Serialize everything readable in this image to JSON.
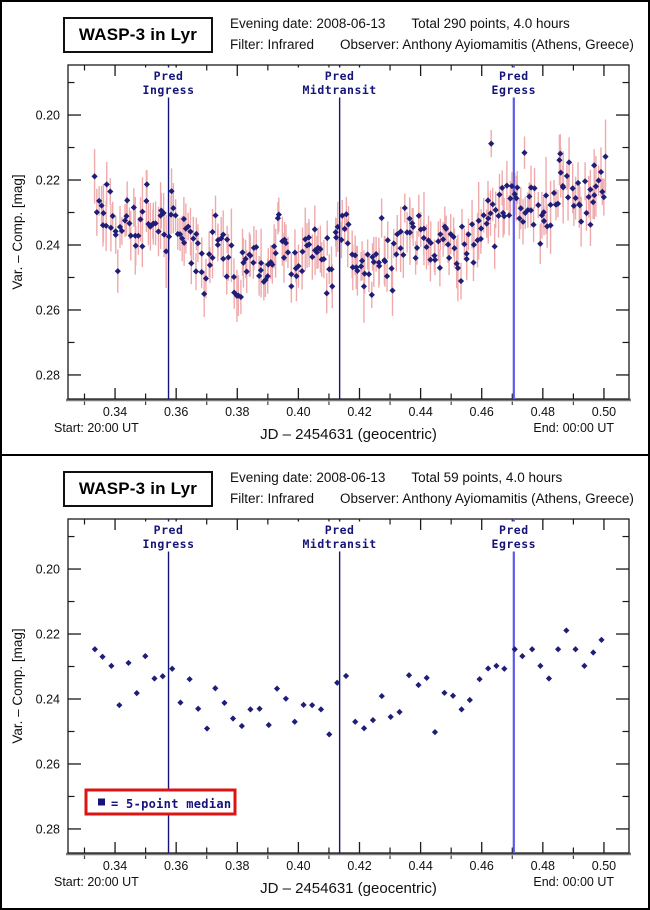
{
  "colors": {
    "marker": "#1e1e78",
    "error_bar": "#efaaac",
    "vline_dark": "#14147a",
    "vline_egress": "#5b5be8",
    "frame": "#1a1a1a",
    "x_axis_base": "#7b7b7b",
    "mono_text": "#14147a",
    "legend_border": "#dc1414",
    "text": "#111111"
  },
  "chart_data": [
    {
      "type": "scatter",
      "header": {
        "title": "WASP-3 in Lyr",
        "line1_left": "Evening date: 2008-06-13",
        "line1_right": "Total 290 points, 4.0 hours",
        "line2_left": "Filter: Infrared",
        "line2_right": "Observer: Anthony Ayiomamitis (Athens, Greece)"
      },
      "xlabel": "JD – 2454631  (geocentric)",
      "ylabel": "Var. – Comp. [mag]",
      "corner_left": "Start: 20:00 UT",
      "corner_right": "End: 00:00 UT",
      "xlim": [
        0.3246,
        0.5082
      ],
      "ylim": [
        0.1846,
        0.2874
      ],
      "y_axis_inverted_brighter_up": true,
      "x_major_ticks": [
        0.34,
        0.36,
        0.38,
        0.4,
        0.42,
        0.44,
        0.46,
        0.48,
        0.5
      ],
      "x_minor_ticks": [
        0.33,
        0.35,
        0.37,
        0.39,
        0.41,
        0.43,
        0.45,
        0.47,
        0.49
      ],
      "y_major_ticks": [
        0.2,
        0.22,
        0.24,
        0.26,
        0.28
      ],
      "y_minor_ticks": [
        0.19,
        0.21,
        0.23,
        0.25,
        0.27
      ],
      "points_total": 290,
      "error_bars": true,
      "marker": "diamond",
      "note": "290 overlapping points not individually resolvable; synthesized deterministically around the 5-point median curve of the second chart",
      "synth": {
        "seed": 42,
        "n": 286,
        "x_start": 0.3335,
        "x_end": 0.5005,
        "noise_amp": 0.0095,
        "err_min": 0.004,
        "err_span": 0.0038,
        "y_clamp": [
          0.207,
          0.2625
        ]
      },
      "outliers": [
        [
          0.4631,
          0.2088,
          0.0042
        ],
        [
          0.474,
          0.2116,
          0.005
        ],
        [
          0.4857,
          0.2119,
          0.006
        ],
        [
          0.4968,
          0.2155,
          0.005
        ]
      ],
      "vlines": [
        {
          "x": 0.3575,
          "label": [
            "Pred",
            "Ingress"
          ],
          "color": "#14147a",
          "width": 1.4
        },
        {
          "x": 0.4135,
          "label": [
            "Pred",
            "Midtransit"
          ],
          "color": "#14147a",
          "width": 1.4
        },
        {
          "x": 0.4705,
          "label": [
            "Pred",
            "Egress"
          ],
          "color": "#5b5be8",
          "width": 2.2
        }
      ]
    },
    {
      "type": "scatter",
      "header": {
        "title": "WASP-3 in Lyr",
        "line1_left": "Evening date: 2008-06-13",
        "line1_right": "Total 59 points, 4.0 hours",
        "line2_left": "Filter: Infrared",
        "line2_right": "Observer: Anthony Ayiomamitis (Athens, Greece)"
      },
      "xlabel": "JD – 2454631  (geocentric)",
      "ylabel": "Var. – Comp. [mag]",
      "corner_left": "Start: 20:00 UT",
      "corner_right": "End: 00:00 UT",
      "xlim": [
        0.3246,
        0.5082
      ],
      "ylim": [
        0.1846,
        0.2874
      ],
      "x_major_ticks": [
        0.34,
        0.36,
        0.38,
        0.4,
        0.42,
        0.44,
        0.46,
        0.48,
        0.5
      ],
      "x_minor_ticks": [
        0.33,
        0.35,
        0.37,
        0.39,
        0.41,
        0.43,
        0.45,
        0.47,
        0.49
      ],
      "y_major_ticks": [
        0.2,
        0.22,
        0.24,
        0.26,
        0.28
      ],
      "y_minor_ticks": [
        0.19,
        0.21,
        0.23,
        0.25,
        0.27
      ],
      "points_total": 59,
      "error_bars": false,
      "marker": "diamond",
      "points": [
        [
          0.3334,
          0.2247
        ],
        [
          0.3359,
          0.227
        ],
        [
          0.3388,
          0.2298
        ],
        [
          0.3414,
          0.2419
        ],
        [
          0.3444,
          0.2289
        ],
        [
          0.3471,
          0.2382
        ],
        [
          0.3499,
          0.2268
        ],
        [
          0.3529,
          0.2337
        ],
        [
          0.3556,
          0.233
        ],
        [
          0.3587,
          0.2307
        ],
        [
          0.3614,
          0.2411
        ],
        [
          0.3644,
          0.2339
        ],
        [
          0.3672,
          0.243
        ],
        [
          0.3701,
          0.2491
        ],
        [
          0.3728,
          0.2367
        ],
        [
          0.3758,
          0.2412
        ],
        [
          0.3786,
          0.246
        ],
        [
          0.3815,
          0.2483
        ],
        [
          0.3843,
          0.2432
        ],
        [
          0.3873,
          0.243
        ],
        [
          0.3903,
          0.248
        ],
        [
          0.393,
          0.2368
        ],
        [
          0.3959,
          0.2399
        ],
        [
          0.3988,
          0.247
        ],
        [
          0.4017,
          0.2418
        ],
        [
          0.4045,
          0.2419
        ],
        [
          0.4074,
          0.2432
        ],
        [
          0.4101,
          0.2509
        ],
        [
          0.4127,
          0.235
        ],
        [
          0.4156,
          0.2329
        ],
        [
          0.4186,
          0.247
        ],
        [
          0.4215,
          0.249
        ],
        [
          0.4244,
          0.2465
        ],
        [
          0.4273,
          0.2391
        ],
        [
          0.4302,
          0.2455
        ],
        [
          0.4331,
          0.244
        ],
        [
          0.4362,
          0.2327
        ],
        [
          0.4393,
          0.2357
        ],
        [
          0.442,
          0.2335
        ],
        [
          0.4447,
          0.2502
        ],
        [
          0.4478,
          0.2381
        ],
        [
          0.4506,
          0.239
        ],
        [
          0.4534,
          0.2432
        ],
        [
          0.4561,
          0.2403
        ],
        [
          0.4593,
          0.2339
        ],
        [
          0.4621,
          0.2306
        ],
        [
          0.4648,
          0.2298
        ],
        [
          0.4674,
          0.2307
        ],
        [
          0.4708,
          0.2247
        ],
        [
          0.4733,
          0.2268
        ],
        [
          0.4765,
          0.2247
        ],
        [
          0.4792,
          0.2298
        ],
        [
          0.482,
          0.2337
        ],
        [
          0.485,
          0.2247
        ],
        [
          0.4877,
          0.2189
        ],
        [
          0.4907,
          0.2247
        ],
        [
          0.4936,
          0.2298
        ],
        [
          0.4965,
          0.2257
        ],
        [
          0.4992,
          0.2218
        ]
      ],
      "vlines": [
        {
          "x": 0.3575,
          "label": [
            "Pred",
            "Ingress"
          ],
          "color": "#14147a",
          "width": 1.4
        },
        {
          "x": 0.4135,
          "label": [
            "Pred",
            "Midtransit"
          ],
          "color": "#14147a",
          "width": 1.4
        },
        {
          "x": 0.4705,
          "label": [
            "Pred",
            "Egress"
          ],
          "color": "#5b5be8",
          "width": 2.2
        }
      ],
      "legend": {
        "text": "= 5-point median",
        "marker": "square"
      }
    }
  ]
}
